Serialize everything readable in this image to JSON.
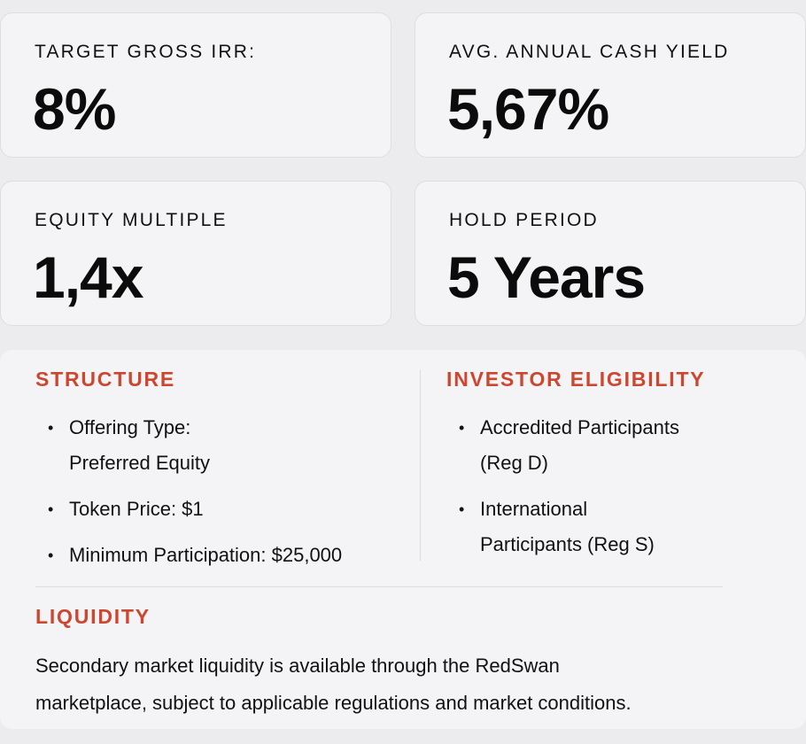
{
  "metrics": {
    "irr": {
      "label": "TARGET GROSS IRR:",
      "value": "8%"
    },
    "yield": {
      "label": "AVG. ANNUAL CASH YIELD",
      "value": "5,67%"
    },
    "multiple": {
      "label": "EQUITY MULTIPLE",
      "value": "1,4x"
    },
    "hold": {
      "label": "HOLD PERIOD",
      "value": "5 Years"
    }
  },
  "structure": {
    "title": "STRUCTURE",
    "items": [
      {
        "line1": "Offering Type:",
        "line2": "Preferred Equity"
      },
      {
        "line1": "Token Price: $1",
        "line2": ""
      },
      {
        "line1": "Minimum Participation: $25,000",
        "line2": ""
      }
    ]
  },
  "eligibility": {
    "title": "INVESTOR ELIGIBILITY",
    "items": [
      {
        "line1": "Accredited Participants",
        "line2": "(Reg D)"
      },
      {
        "line1": "International",
        "line2": "Participants (Reg S)"
      }
    ]
  },
  "liquidity": {
    "title": "LIQUIDITY",
    "line1": "Secondary market liquidity is available through the RedSwan",
    "line2": "marketplace, subject to applicable regulations and market conditions."
  },
  "colors": {
    "accent": "#cc4630",
    "card_bg": "#f4f4f6",
    "page_bg": "#ececee"
  }
}
